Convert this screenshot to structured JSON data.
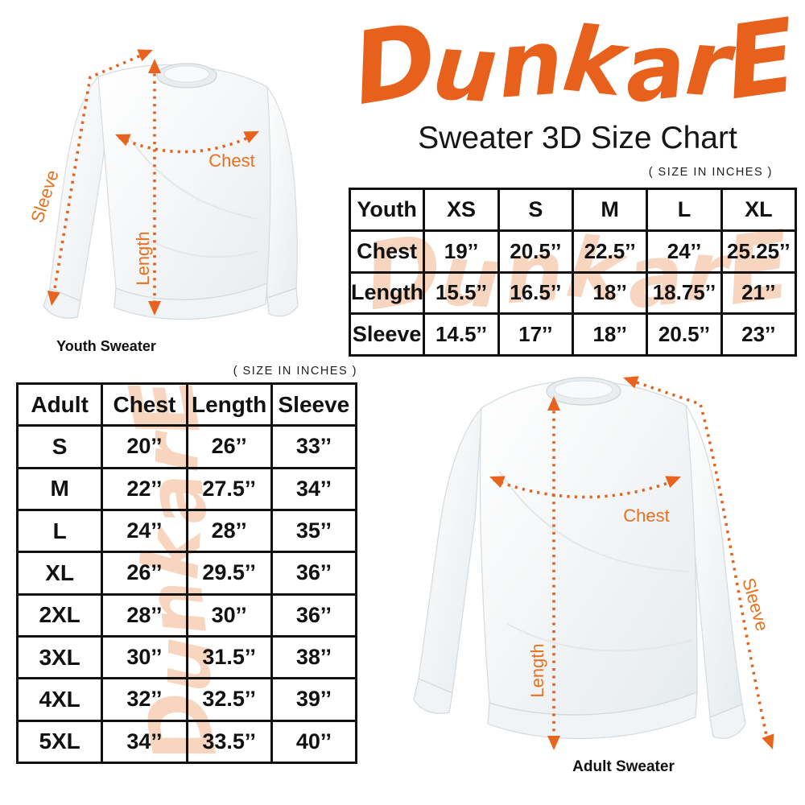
{
  "brand": {
    "logo_text": "DunkarE",
    "orange": "#E8611C",
    "watermark_color": "#F6CBB0",
    "measure_line_color": "#E06420"
  },
  "header": {
    "title": "Sweater 3D Size Chart"
  },
  "notes": {
    "youth_units": "( SIZE IN INCHES )",
    "adult_units": "( SIZE IN INCHES )"
  },
  "youth_table": {
    "columns": [
      "Youth",
      "XS",
      "S",
      "M",
      "L",
      "XL"
    ],
    "rows": [
      {
        "label": "Chest",
        "values": [
          "19’’",
          "20.5’’",
          "22.5’’",
          "24’’",
          "25.25’’"
        ]
      },
      {
        "label": "Length",
        "values": [
          "15.5’’",
          "16.5’’",
          "18’’",
          "18.75’’",
          "21’’"
        ]
      },
      {
        "label": "Sleeve",
        "values": [
          "14.5’’",
          "17’’",
          "18’’",
          "20.5’’",
          "23’’"
        ]
      }
    ]
  },
  "adult_table": {
    "columns": [
      "Adult",
      "Chest",
      "Length",
      "Sleeve"
    ],
    "rows": [
      {
        "label": "S",
        "values": [
          "20’’",
          "26’’",
          "33’’"
        ]
      },
      {
        "label": "M",
        "values": [
          "22’’",
          "27.5’’",
          "34’’"
        ]
      },
      {
        "label": "L",
        "values": [
          "24’’",
          "28’’",
          "35’’"
        ]
      },
      {
        "label": "XL",
        "values": [
          "26’’",
          "29.5’’",
          "36’’"
        ]
      },
      {
        "label": "2XL",
        "values": [
          "28’’",
          "30’’",
          "36’’"
        ]
      },
      {
        "label": "3XL",
        "values": [
          "30’’",
          "31.5’’",
          "38’’"
        ]
      },
      {
        "label": "4XL",
        "values": [
          "32’’",
          "32.5’’",
          "39’’"
        ]
      },
      {
        "label": "5XL",
        "values": [
          "34’’",
          "33.5’’",
          "40’’"
        ]
      }
    ]
  },
  "youth_diagram": {
    "caption": "Youth Sweater",
    "labels": {
      "sleeve": "Sleeve",
      "chest": "Chest",
      "length": "Length"
    }
  },
  "adult_diagram": {
    "caption": "Adult Sweater",
    "labels": {
      "sleeve": "Sleeve",
      "chest": "Chest",
      "length": "Length"
    }
  }
}
